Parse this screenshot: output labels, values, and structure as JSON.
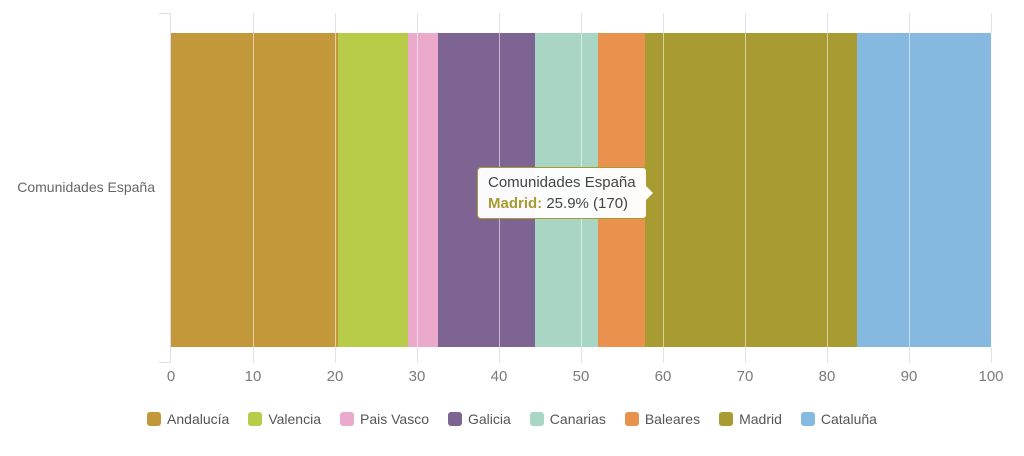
{
  "chart_data": {
    "type": "bar",
    "subtype": "horizontal-stacked-percent",
    "title": "",
    "xlabel": "",
    "ylabel": "Comunidades España",
    "categories": [
      "Comunidades España"
    ],
    "series": [
      {
        "name": "Andalucía",
        "percent": 20.4,
        "color": "#C2983B"
      },
      {
        "name": "Valencia",
        "percent": 8.5,
        "color": "#B8CC4A"
      },
      {
        "name": "Pais Vasco",
        "percent": 3.7,
        "color": "#EBAACB"
      },
      {
        "name": "Galicia",
        "percent": 11.8,
        "color": "#7D6493"
      },
      {
        "name": "Canarias",
        "percent": 7.7,
        "color": "#A9D6C4"
      },
      {
        "name": "Baleares",
        "percent": 5.7,
        "color": "#E8924E"
      },
      {
        "name": "Madrid",
        "percent": 25.9,
        "count": 170,
        "color": "#A89B32"
      },
      {
        "name": "Cataluña",
        "percent": 16.3,
        "color": "#86B9E0"
      }
    ],
    "xlim": [
      0,
      100
    ],
    "x_ticks": [
      0,
      10,
      20,
      30,
      40,
      50,
      60,
      70,
      80,
      90,
      100
    ],
    "grid": "vertical-white-over-bar",
    "legend_position": "bottom"
  },
  "y_axis": {
    "category_label": "Comunidades España"
  },
  "tooltip": {
    "title": "Comunidades España",
    "series_label": "Madrid:",
    "value_text": " 25.9% (170)",
    "accent_color": "#A89B32"
  },
  "colors": {
    "background": "#FFFFFF",
    "axis_line": "#D7DDEB",
    "tick_mark": "#E2E2E2",
    "tick_label": "#7A7A7A",
    "category_label": "#666666",
    "legend_label": "#555555"
  }
}
